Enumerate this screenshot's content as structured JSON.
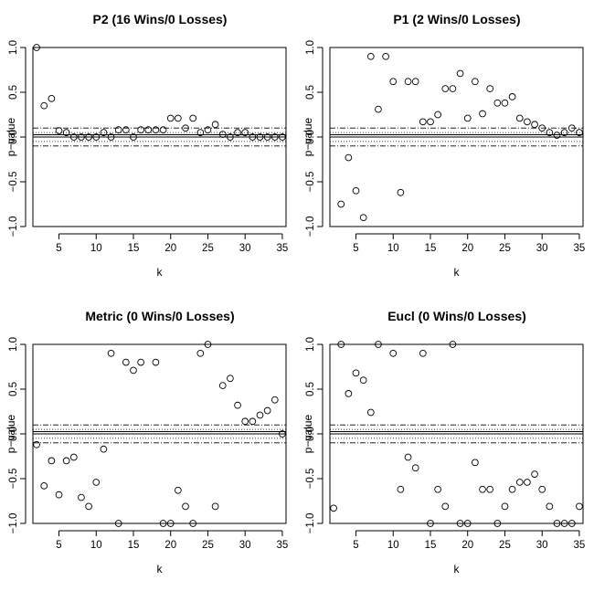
{
  "chart_data": [
    {
      "type": "scatter",
      "title": "P2 (16 Wins/0 Losses)",
      "xlabel": "k",
      "ylabel": "p−value",
      "xlim": [
        1.5,
        35.5
      ],
      "ylim": [
        -1.0,
        1.0
      ],
      "xticks": [
        "5",
        "10",
        "15",
        "20",
        "25",
        "30",
        "35"
      ],
      "yticks": [
        "−1.0",
        "−0.5",
        "0.0",
        "0.5",
        "1.0"
      ],
      "reference_lines": {
        "solid": [
          0.0,
          0.025
        ],
        "dotted": [
          0.05,
          -0.05
        ],
        "dashdot": [
          0.1,
          -0.1
        ]
      },
      "x": [
        2,
        3,
        4,
        5,
        6,
        7,
        8,
        9,
        10,
        11,
        12,
        13,
        14,
        15,
        16,
        17,
        18,
        19,
        20,
        21,
        22,
        23,
        24,
        25,
        26,
        27,
        28,
        29,
        30,
        31,
        32,
        33,
        34,
        35
      ],
      "y": [
        1.0,
        0.35,
        0.43,
        0.07,
        0.05,
        0.0,
        0.0,
        0.0,
        0.0,
        0.05,
        0.0,
        0.08,
        0.08,
        0.0,
        0.08,
        0.08,
        0.08,
        0.08,
        0.21,
        0.21,
        0.1,
        0.21,
        0.05,
        0.08,
        0.14,
        0.03,
        0.0,
        0.05,
        0.05,
        0.0,
        0.0,
        0.0,
        0.0,
        0.0
      ]
    },
    {
      "type": "scatter",
      "title": "P1 (2 Wins/0 Losses)",
      "xlabel": "k",
      "ylabel": "p−value",
      "xlim": [
        1.5,
        35.5
      ],
      "ylim": [
        -1.0,
        1.0
      ],
      "xticks": [
        "5",
        "10",
        "15",
        "20",
        "25",
        "30",
        "35"
      ],
      "yticks": [
        "−1.0",
        "−0.5",
        "0.0",
        "0.5",
        "1.0"
      ],
      "reference_lines": {
        "solid": [
          0.0,
          0.025
        ],
        "dotted": [
          0.05,
          -0.05
        ],
        "dashdot": [
          0.1,
          -0.1
        ]
      },
      "x": [
        3,
        4,
        5,
        6,
        7,
        8,
        9,
        10,
        11,
        12,
        13,
        14,
        15,
        16,
        17,
        18,
        19,
        20,
        21,
        22,
        23,
        24,
        25,
        26,
        27,
        28,
        29,
        30,
        31,
        32,
        33,
        34,
        35
      ],
      "y": [
        -0.75,
        -0.23,
        -0.6,
        -0.9,
        0.9,
        0.31,
        0.9,
        0.62,
        -0.62,
        0.62,
        0.62,
        0.17,
        0.17,
        0.25,
        0.54,
        0.54,
        0.71,
        0.21,
        0.62,
        0.26,
        0.54,
        0.38,
        0.38,
        0.45,
        0.21,
        0.17,
        0.14,
        0.1,
        0.05,
        0.02,
        0.05,
        0.1,
        0.05
      ]
    },
    {
      "type": "scatter",
      "title": "Metric (0 Wins/0 Losses)",
      "xlabel": "k",
      "ylabel": "p−value",
      "xlim": [
        1.5,
        35.5
      ],
      "ylim": [
        -1.0,
        1.0
      ],
      "xticks": [
        "5",
        "10",
        "15",
        "20",
        "25",
        "30",
        "35"
      ],
      "yticks": [
        "−1.0",
        "−0.5",
        "0.0",
        "0.5",
        "1.0"
      ],
      "reference_lines": {
        "solid": [
          0.0,
          0.025
        ],
        "dotted": [
          0.05,
          -0.05
        ],
        "dashdot": [
          0.1,
          -0.1
        ]
      },
      "x": [
        2,
        3,
        4,
        5,
        6,
        7,
        8,
        9,
        10,
        11,
        12,
        13,
        14,
        15,
        16,
        18,
        19,
        20,
        21,
        22,
        23,
        24,
        25,
        26,
        27,
        28,
        29,
        30,
        31,
        32,
        33,
        34,
        35
      ],
      "y": [
        -0.12,
        -0.58,
        -0.3,
        -0.68,
        -0.3,
        -0.26,
        -0.71,
        -0.81,
        -0.54,
        -0.17,
        0.9,
        -1.0,
        0.8,
        0.71,
        0.8,
        0.8,
        -1.0,
        -1.0,
        -0.63,
        -0.81,
        -1.0,
        0.9,
        1.0,
        -0.81,
        0.54,
        0.62,
        0.32,
        0.14,
        0.14,
        0.21,
        0.26,
        0.38,
        0.0
      ]
    },
    {
      "type": "scatter",
      "title": "Eucl (0 Wins/0 Losses)",
      "xlabel": "k",
      "ylabel": "p−value",
      "xlim": [
        1.5,
        35.5
      ],
      "ylim": [
        -1.0,
        1.0
      ],
      "xticks": [
        "5",
        "10",
        "15",
        "20",
        "25",
        "30",
        "35"
      ],
      "yticks": [
        "−1.0",
        "−0.5",
        "0.0",
        "0.5",
        "1.0"
      ],
      "reference_lines": {
        "solid": [
          0.0,
          0.025
        ],
        "dotted": [
          0.05,
          -0.05
        ],
        "dashdot": [
          0.1,
          -0.1
        ]
      },
      "x": [
        2,
        3,
        4,
        5,
        6,
        7,
        8,
        10,
        11,
        12,
        13,
        14,
        15,
        16,
        17,
        18,
        19,
        20,
        21,
        22,
        23,
        24,
        25,
        26,
        27,
        28,
        29,
        30,
        31,
        32,
        33,
        34,
        35
      ],
      "y": [
        -0.83,
        1.0,
        0.45,
        0.68,
        0.6,
        0.24,
        1.0,
        0.9,
        -0.62,
        -0.26,
        -0.38,
        0.9,
        -1.0,
        -0.62,
        -0.81,
        1.0,
        -1.0,
        -1.0,
        -0.32,
        -0.62,
        -0.62,
        -1.0,
        -0.81,
        -0.62,
        -0.54,
        -0.54,
        -0.45,
        -0.62,
        -0.81,
        -1.0,
        -1.0,
        -1.0,
        -0.81
      ]
    }
  ]
}
